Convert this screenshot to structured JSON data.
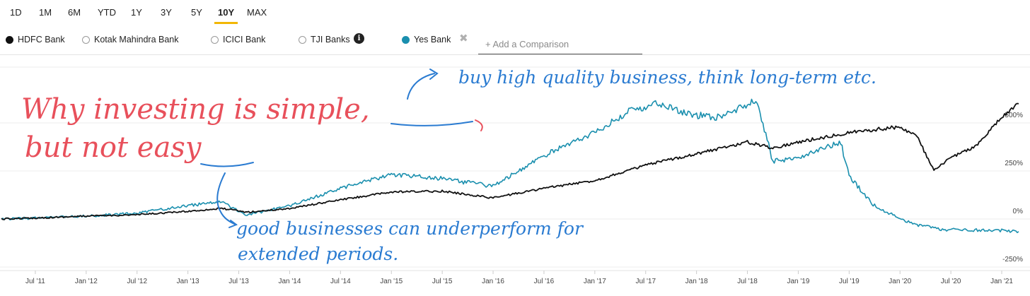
{
  "range_tabs": [
    "1D",
    "1M",
    "6M",
    "YTD",
    "1Y",
    "3Y",
    "5Y",
    "10Y",
    "MAX"
  ],
  "active_range": "10Y",
  "series_toggles": [
    {
      "label": "HDFC Bank",
      "color": "#111111",
      "selected": true
    },
    {
      "label": "Kotak Mahindra Bank",
      "color": "#9a9a9a",
      "selected": false
    },
    {
      "label": "ICICI Bank",
      "color": "#9a9a9a",
      "selected": false
    },
    {
      "label": "TJI Banks",
      "color": "#9a9a9a",
      "selected": false
    },
    {
      "label": "Yes Bank",
      "color": "#1a8fae",
      "selected": true
    }
  ],
  "icons": {
    "info": "info-icon",
    "remove": "close-icon"
  },
  "add_comparison_placeholder": "+ Add a Comparison",
  "accent_color": "#f2b705",
  "annotations": {
    "title_line1": "Why investing is simple,",
    "title_line2": "but not easy",
    "top_note": "buy high quality business, think long-term etc.",
    "bottom_note_line1": "good businesses can underperform for",
    "bottom_note_line2": "extended periods."
  },
  "chart_data": {
    "type": "line",
    "x_ticks": [
      "Jul '11",
      "Jan '12",
      "Jul '12",
      "Jan '13",
      "Jul '13",
      "Jan '14",
      "Jul '14",
      "Jan '15",
      "Jul '15",
      "Jan '16",
      "Jul '16",
      "Jan '17",
      "Jul '17",
      "Jan '18",
      "Jul '18",
      "Jan '19",
      "Jul '19",
      "Jan '20",
      "Jul '20",
      "Jan '21"
    ],
    "y_ticks": [
      "500%",
      "250%",
      "0%",
      "-250%"
    ],
    "y_tick_values": [
      500,
      250,
      0,
      -250
    ],
    "ylim": [
      -250,
      660
    ],
    "grid": true,
    "series": [
      {
        "name": "HDFC Bank",
        "color": "#111111",
        "x": [
          "2011-03",
          "2011-07",
          "2012-01",
          "2012-07",
          "2013-01",
          "2013-05",
          "2013-08",
          "2014-01",
          "2014-07",
          "2015-01",
          "2015-07",
          "2016-01",
          "2016-07",
          "2017-01",
          "2017-07",
          "2018-01",
          "2018-07",
          "2018-10",
          "2019-01",
          "2019-07",
          "2020-01",
          "2020-03",
          "2020-05",
          "2020-07",
          "2020-10",
          "2021-01",
          "2021-03"
        ],
        "values": [
          0,
          5,
          15,
          22,
          40,
          55,
          35,
          55,
          100,
          140,
          145,
          110,
          160,
          200,
          280,
          340,
          400,
          370,
          400,
          450,
          480,
          430,
          250,
          320,
          380,
          530,
          600
        ]
      },
      {
        "name": "Yes Bank",
        "color": "#1a8fae",
        "x": [
          "2011-03",
          "2011-07",
          "2012-01",
          "2012-07",
          "2013-01",
          "2013-05",
          "2013-08",
          "2014-01",
          "2014-07",
          "2015-01",
          "2015-07",
          "2016-01",
          "2016-07",
          "2017-01",
          "2017-05",
          "2017-08",
          "2018-01",
          "2018-04",
          "2018-08",
          "2018-10",
          "2019-01",
          "2019-06",
          "2019-07",
          "2019-10",
          "2020-01",
          "2020-03",
          "2020-06",
          "2021-01",
          "2021-03"
        ],
        "values": [
          0,
          5,
          15,
          30,
          70,
          90,
          20,
          70,
          160,
          230,
          210,
          170,
          330,
          450,
          560,
          600,
          540,
          530,
          620,
          300,
          320,
          400,
          220,
          70,
          0,
          -30,
          -55,
          -60,
          -65
        ]
      }
    ]
  }
}
